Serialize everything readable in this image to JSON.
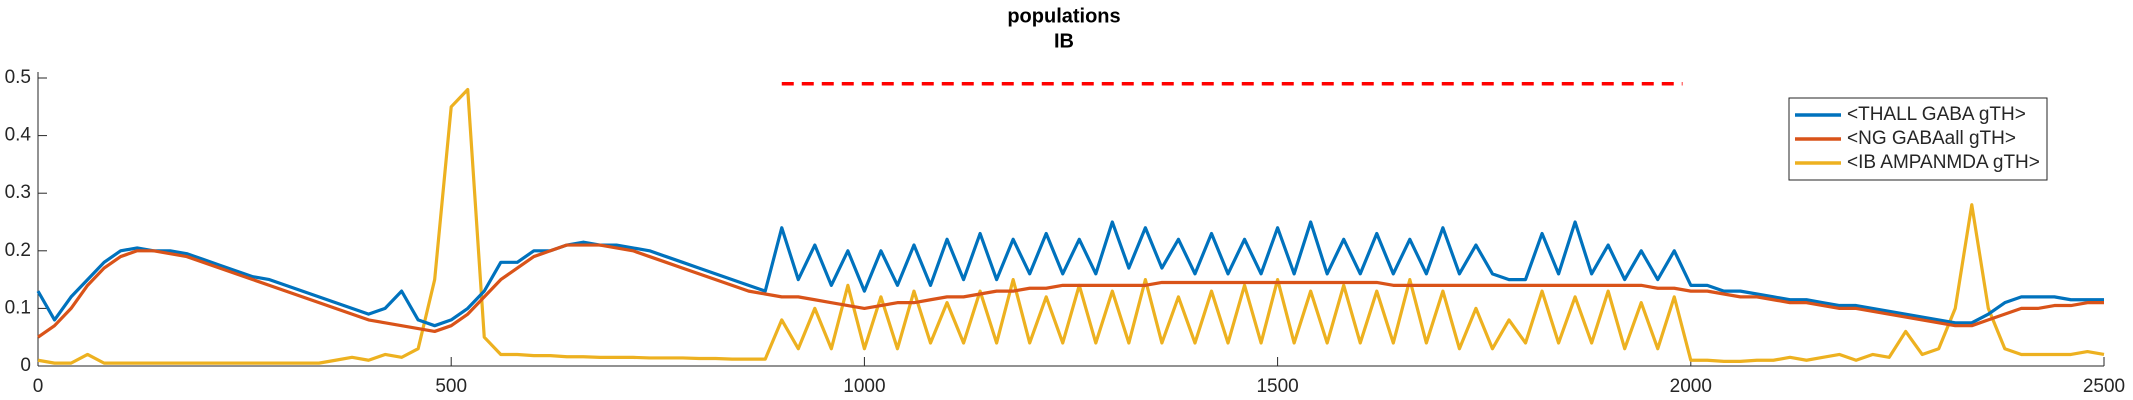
{
  "chart_data": {
    "type": "line",
    "title": "populations",
    "subtitle": "IB",
    "x": [
      0,
      20,
      40,
      60,
      80,
      100,
      120,
      140,
      160,
      180,
      200,
      220,
      240,
      260,
      280,
      300,
      320,
      340,
      360,
      380,
      400,
      420,
      440,
      460,
      480,
      500,
      520,
      540,
      560,
      580,
      600,
      620,
      640,
      660,
      680,
      700,
      720,
      740,
      760,
      780,
      800,
      820,
      840,
      860,
      880,
      900,
      920,
      940,
      960,
      980,
      1000,
      1020,
      1040,
      1060,
      1080,
      1100,
      1120,
      1140,
      1160,
      1180,
      1200,
      1220,
      1240,
      1260,
      1280,
      1300,
      1320,
      1340,
      1360,
      1380,
      1400,
      1420,
      1440,
      1460,
      1480,
      1500,
      1520,
      1540,
      1560,
      1580,
      1600,
      1620,
      1640,
      1660,
      1680,
      1700,
      1720,
      1740,
      1760,
      1780,
      1800,
      1820,
      1840,
      1860,
      1880,
      1900,
      1920,
      1940,
      1960,
      1980,
      2000,
      2020,
      2040,
      2060,
      2080,
      2100,
      2120,
      2140,
      2160,
      2180,
      2200,
      2220,
      2240,
      2260,
      2280,
      2300,
      2320,
      2340,
      2360,
      2380,
      2400,
      2420,
      2440,
      2460,
      2480,
      2500
    ],
    "series": [
      {
        "name": "<THALL GABA gTH>",
        "color": "#0072bd",
        "values": [
          0.13,
          0.08,
          0.12,
          0.15,
          0.18,
          0.2,
          0.205,
          0.2,
          0.2,
          0.195,
          0.185,
          0.175,
          0.165,
          0.155,
          0.15,
          0.14,
          0.13,
          0.12,
          0.11,
          0.1,
          0.09,
          0.1,
          0.13,
          0.08,
          0.07,
          0.08,
          0.1,
          0.13,
          0.18,
          0.18,
          0.2,
          0.2,
          0.21,
          0.215,
          0.21,
          0.21,
          0.205,
          0.2,
          0.19,
          0.18,
          0.17,
          0.16,
          0.15,
          0.14,
          0.13,
          0.24,
          0.15,
          0.21,
          0.14,
          0.2,
          0.13,
          0.2,
          0.14,
          0.21,
          0.14,
          0.22,
          0.15,
          0.23,
          0.15,
          0.22,
          0.16,
          0.23,
          0.16,
          0.22,
          0.16,
          0.25,
          0.17,
          0.24,
          0.17,
          0.22,
          0.16,
          0.23,
          0.16,
          0.22,
          0.16,
          0.24,
          0.16,
          0.25,
          0.16,
          0.22,
          0.16,
          0.23,
          0.16,
          0.22,
          0.16,
          0.24,
          0.16,
          0.21,
          0.16,
          0.15,
          0.15,
          0.23,
          0.16,
          0.25,
          0.16,
          0.21,
          0.15,
          0.2,
          0.15,
          0.2,
          0.14,
          0.14,
          0.13,
          0.13,
          0.125,
          0.12,
          0.115,
          0.115,
          0.11,
          0.105,
          0.105,
          0.1,
          0.095,
          0.09,
          0.085,
          0.08,
          0.075,
          0.075,
          0.09,
          0.11,
          0.12,
          0.12,
          0.12,
          0.115,
          0.115,
          0.115
        ]
      },
      {
        "name": "<NG GABAall gTH>",
        "color": "#d95319",
        "values": [
          0.05,
          0.07,
          0.1,
          0.14,
          0.17,
          0.19,
          0.2,
          0.2,
          0.195,
          0.19,
          0.18,
          0.17,
          0.16,
          0.15,
          0.14,
          0.13,
          0.12,
          0.11,
          0.1,
          0.09,
          0.08,
          0.075,
          0.07,
          0.065,
          0.06,
          0.07,
          0.09,
          0.12,
          0.15,
          0.17,
          0.19,
          0.2,
          0.21,
          0.21,
          0.21,
          0.205,
          0.2,
          0.19,
          0.18,
          0.17,
          0.16,
          0.15,
          0.14,
          0.13,
          0.125,
          0.12,
          0.12,
          0.115,
          0.11,
          0.105,
          0.1,
          0.105,
          0.11,
          0.11,
          0.115,
          0.12,
          0.12,
          0.125,
          0.13,
          0.13,
          0.135,
          0.135,
          0.14,
          0.14,
          0.14,
          0.14,
          0.14,
          0.14,
          0.145,
          0.145,
          0.145,
          0.145,
          0.145,
          0.145,
          0.145,
          0.145,
          0.145,
          0.145,
          0.145,
          0.145,
          0.145,
          0.145,
          0.14,
          0.14,
          0.14,
          0.14,
          0.14,
          0.14,
          0.14,
          0.14,
          0.14,
          0.14,
          0.14,
          0.14,
          0.14,
          0.14,
          0.14,
          0.14,
          0.135,
          0.135,
          0.13,
          0.13,
          0.125,
          0.12,
          0.12,
          0.115,
          0.11,
          0.11,
          0.105,
          0.1,
          0.1,
          0.095,
          0.09,
          0.085,
          0.08,
          0.075,
          0.07,
          0.07,
          0.08,
          0.09,
          0.1,
          0.1,
          0.105,
          0.105,
          0.11,
          0.11
        ]
      },
      {
        "name": "<IB AMPANMDA gTH>",
        "color": "#edb120",
        "values": [
          0.01,
          0.005,
          0.005,
          0.02,
          0.005,
          0.005,
          0.005,
          0.005,
          0.005,
          0.005,
          0.005,
          0.005,
          0.005,
          0.005,
          0.005,
          0.005,
          0.005,
          0.005,
          0.01,
          0.015,
          0.01,
          0.02,
          0.015,
          0.03,
          0.15,
          0.45,
          0.48,
          0.05,
          0.02,
          0.02,
          0.018,
          0.018,
          0.016,
          0.016,
          0.015,
          0.015,
          0.015,
          0.014,
          0.014,
          0.014,
          0.013,
          0.013,
          0.012,
          0.012,
          0.012,
          0.08,
          0.03,
          0.1,
          0.03,
          0.14,
          0.03,
          0.12,
          0.03,
          0.13,
          0.04,
          0.11,
          0.04,
          0.13,
          0.04,
          0.15,
          0.04,
          0.12,
          0.04,
          0.14,
          0.04,
          0.13,
          0.04,
          0.15,
          0.04,
          0.12,
          0.04,
          0.13,
          0.04,
          0.14,
          0.04,
          0.15,
          0.04,
          0.13,
          0.04,
          0.14,
          0.04,
          0.13,
          0.04,
          0.15,
          0.04,
          0.13,
          0.03,
          0.1,
          0.03,
          0.08,
          0.04,
          0.13,
          0.04,
          0.12,
          0.04,
          0.13,
          0.03,
          0.11,
          0.03,
          0.12,
          0.01,
          0.01,
          0.008,
          0.008,
          0.01,
          0.01,
          0.015,
          0.01,
          0.015,
          0.02,
          0.01,
          0.02,
          0.015,
          0.06,
          0.02,
          0.03,
          0.1,
          0.28,
          0.1,
          0.03,
          0.02,
          0.02,
          0.02,
          0.02,
          0.025,
          0.02
        ]
      }
    ],
    "dashed_line": {
      "x": [
        900,
        1990
      ],
      "y": 0.49,
      "color": "#ff0000"
    },
    "xlim": [
      0,
      2500
    ],
    "xticks": [
      0,
      500,
      1000,
      1500,
      2000,
      2500
    ],
    "ylim": [
      0,
      0.5
    ],
    "yticks": [
      0,
      0.1,
      0.2,
      0.3,
      0.4,
      0.5
    ],
    "legend": "northeast",
    "grid": false
  }
}
